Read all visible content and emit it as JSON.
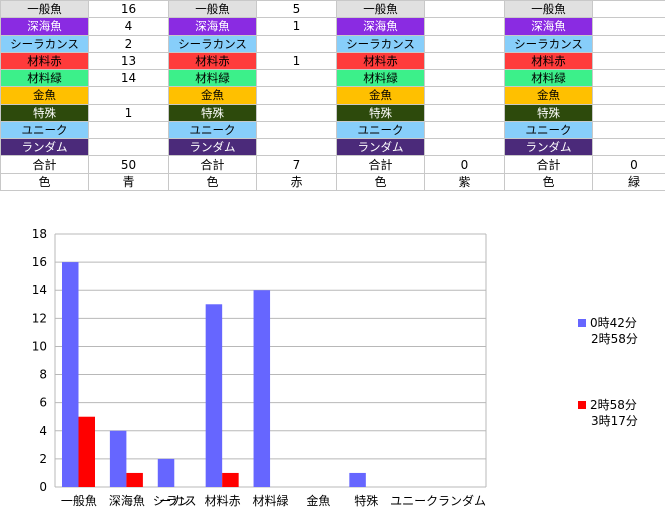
{
  "table": {
    "categories": [
      {
        "label": "一般魚",
        "bg": "#e0e0e0",
        "fg": "#000000"
      },
      {
        "label": "深海魚",
        "bg": "#8a2be2",
        "fg": "#ffffff"
      },
      {
        "label": "シーラカンス",
        "bg": "#87cefa",
        "fg": "#000000"
      },
      {
        "label": "材料赤",
        "bg": "#ff3b3b",
        "fg": "#000000"
      },
      {
        "label": "材料緑",
        "bg": "#3cf08a",
        "fg": "#000000"
      },
      {
        "label": "金魚",
        "bg": "#ffc000",
        "fg": "#000000"
      },
      {
        "label": "特殊",
        "bg": "#2d4a0c",
        "fg": "#ffffff"
      },
      {
        "label": "ユニーク",
        "bg": "#87cefa",
        "fg": "#000000"
      },
      {
        "label": "ランダム",
        "bg": "#4b2a7a",
        "fg": "#ffffff"
      }
    ],
    "groups": [
      {
        "values": [
          "16",
          "4",
          "2",
          "13",
          "14",
          "",
          "1",
          "",
          ""
        ],
        "total_label": "合計",
        "total": "50",
        "color_label": "色",
        "color": "青"
      },
      {
        "values": [
          "5",
          "1",
          "",
          "1",
          "",
          "",
          "",
          "",
          ""
        ],
        "total_label": "合計",
        "total": "7",
        "color_label": "色",
        "color": "赤"
      },
      {
        "values": [
          "",
          "",
          "",
          "",
          "",
          "",
          "",
          "",
          ""
        ],
        "total_label": "合計",
        "total": "0",
        "color_label": "色",
        "color": "紫"
      },
      {
        "values": [
          "",
          "",
          "",
          "",
          "",
          "",
          "",
          "",
          ""
        ],
        "total_label": "合計",
        "total": "0",
        "color_label": "色",
        "color": "緑"
      }
    ]
  },
  "chart_data": {
    "type": "bar",
    "categories": [
      "一般魚",
      "深海魚",
      "シーラカンス",
      "材料赤",
      "材料緑",
      "金魚",
      "特殊",
      "ユニーク",
      "ランダム"
    ],
    "series": [
      {
        "name": "0時42分\n2時58分",
        "color": "#6666ff",
        "values": [
          16,
          4,
          2,
          13,
          14,
          0,
          1,
          0,
          0
        ]
      },
      {
        "name": "2時58分\n3時17分",
        "color": "#ff0000",
        "values": [
          5,
          1,
          0,
          1,
          0,
          0,
          0,
          0,
          0
        ]
      }
    ],
    "ylim": [
      0,
      18
    ],
    "yticks": [
      0,
      2,
      4,
      6,
      8,
      10,
      12,
      14,
      16,
      18
    ],
    "grid": true,
    "legend": "right"
  }
}
